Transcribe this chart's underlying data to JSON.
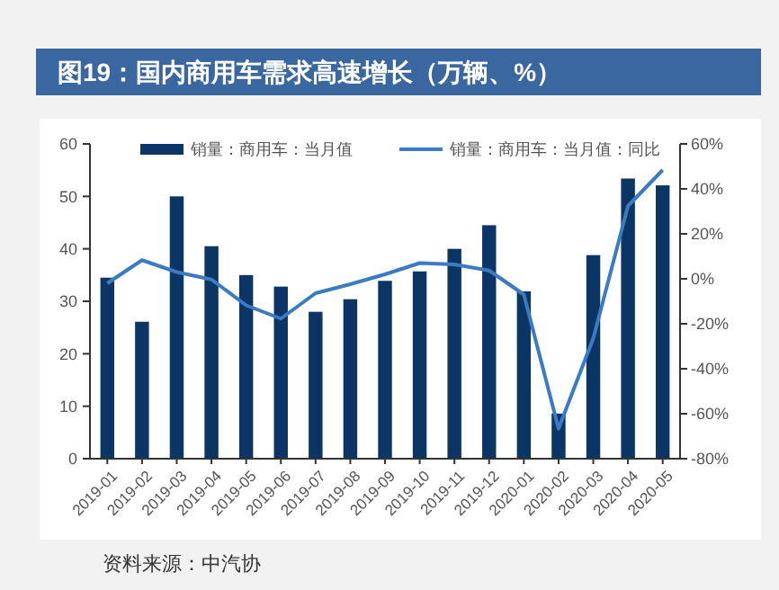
{
  "chart_data": {
    "type": "bar",
    "title": "图19：国内商用车需求高速增长（万辆、%）",
    "categories": [
      "2019-01",
      "2019-02",
      "2019-03",
      "2019-04",
      "2019-05",
      "2019-06",
      "2019-07",
      "2019-08",
      "2019-09",
      "2019-10",
      "2019-11",
      "2019-12",
      "2020-01",
      "2020-02",
      "2020-03",
      "2020-04",
      "2020-05"
    ],
    "series": [
      {
        "name": "销量：商用车：当月值",
        "color": "#0b3565",
        "values": [
          34.5,
          26.1,
          50,
          40.5,
          35,
          32.8,
          28,
          30.4,
          33.9,
          35.7,
          40,
          44.5,
          31.9,
          8.6,
          38.8,
          53.4,
          52.1
        ]
      },
      {
        "name": "销量：商用车：当月值：同比",
        "type": "line",
        "axis": "y2",
        "color": "#3a7bc4",
        "values": [
          -2,
          8.3,
          3,
          -0.3,
          -11.8,
          -17.7,
          -6.4,
          -2.4,
          2,
          7,
          6.4,
          3.7,
          -7,
          -66.6,
          -26.5,
          32.4,
          48.4
        ]
      }
    ],
    "ylim": [
      0,
      60
    ],
    "yticks": [
      0,
      10,
      20,
      30,
      40,
      50,
      60
    ],
    "y2lim": [
      -80,
      60
    ],
    "y2ticks": [
      {
        "value": -80,
        "label": "-80%"
      },
      {
        "value": -60,
        "label": "-60%"
      },
      {
        "value": -40,
        "label": "-40%"
      },
      {
        "value": -20,
        "label": "-20%"
      },
      {
        "value": 0,
        "label": "0%"
      },
      {
        "value": 20,
        "label": "20%"
      },
      {
        "value": 40,
        "label": "40%"
      },
      {
        "value": 60,
        "label": "60%"
      }
    ],
    "legend": "top",
    "grid": false,
    "annotations": [
      "资料来源：中汽协"
    ]
  }
}
